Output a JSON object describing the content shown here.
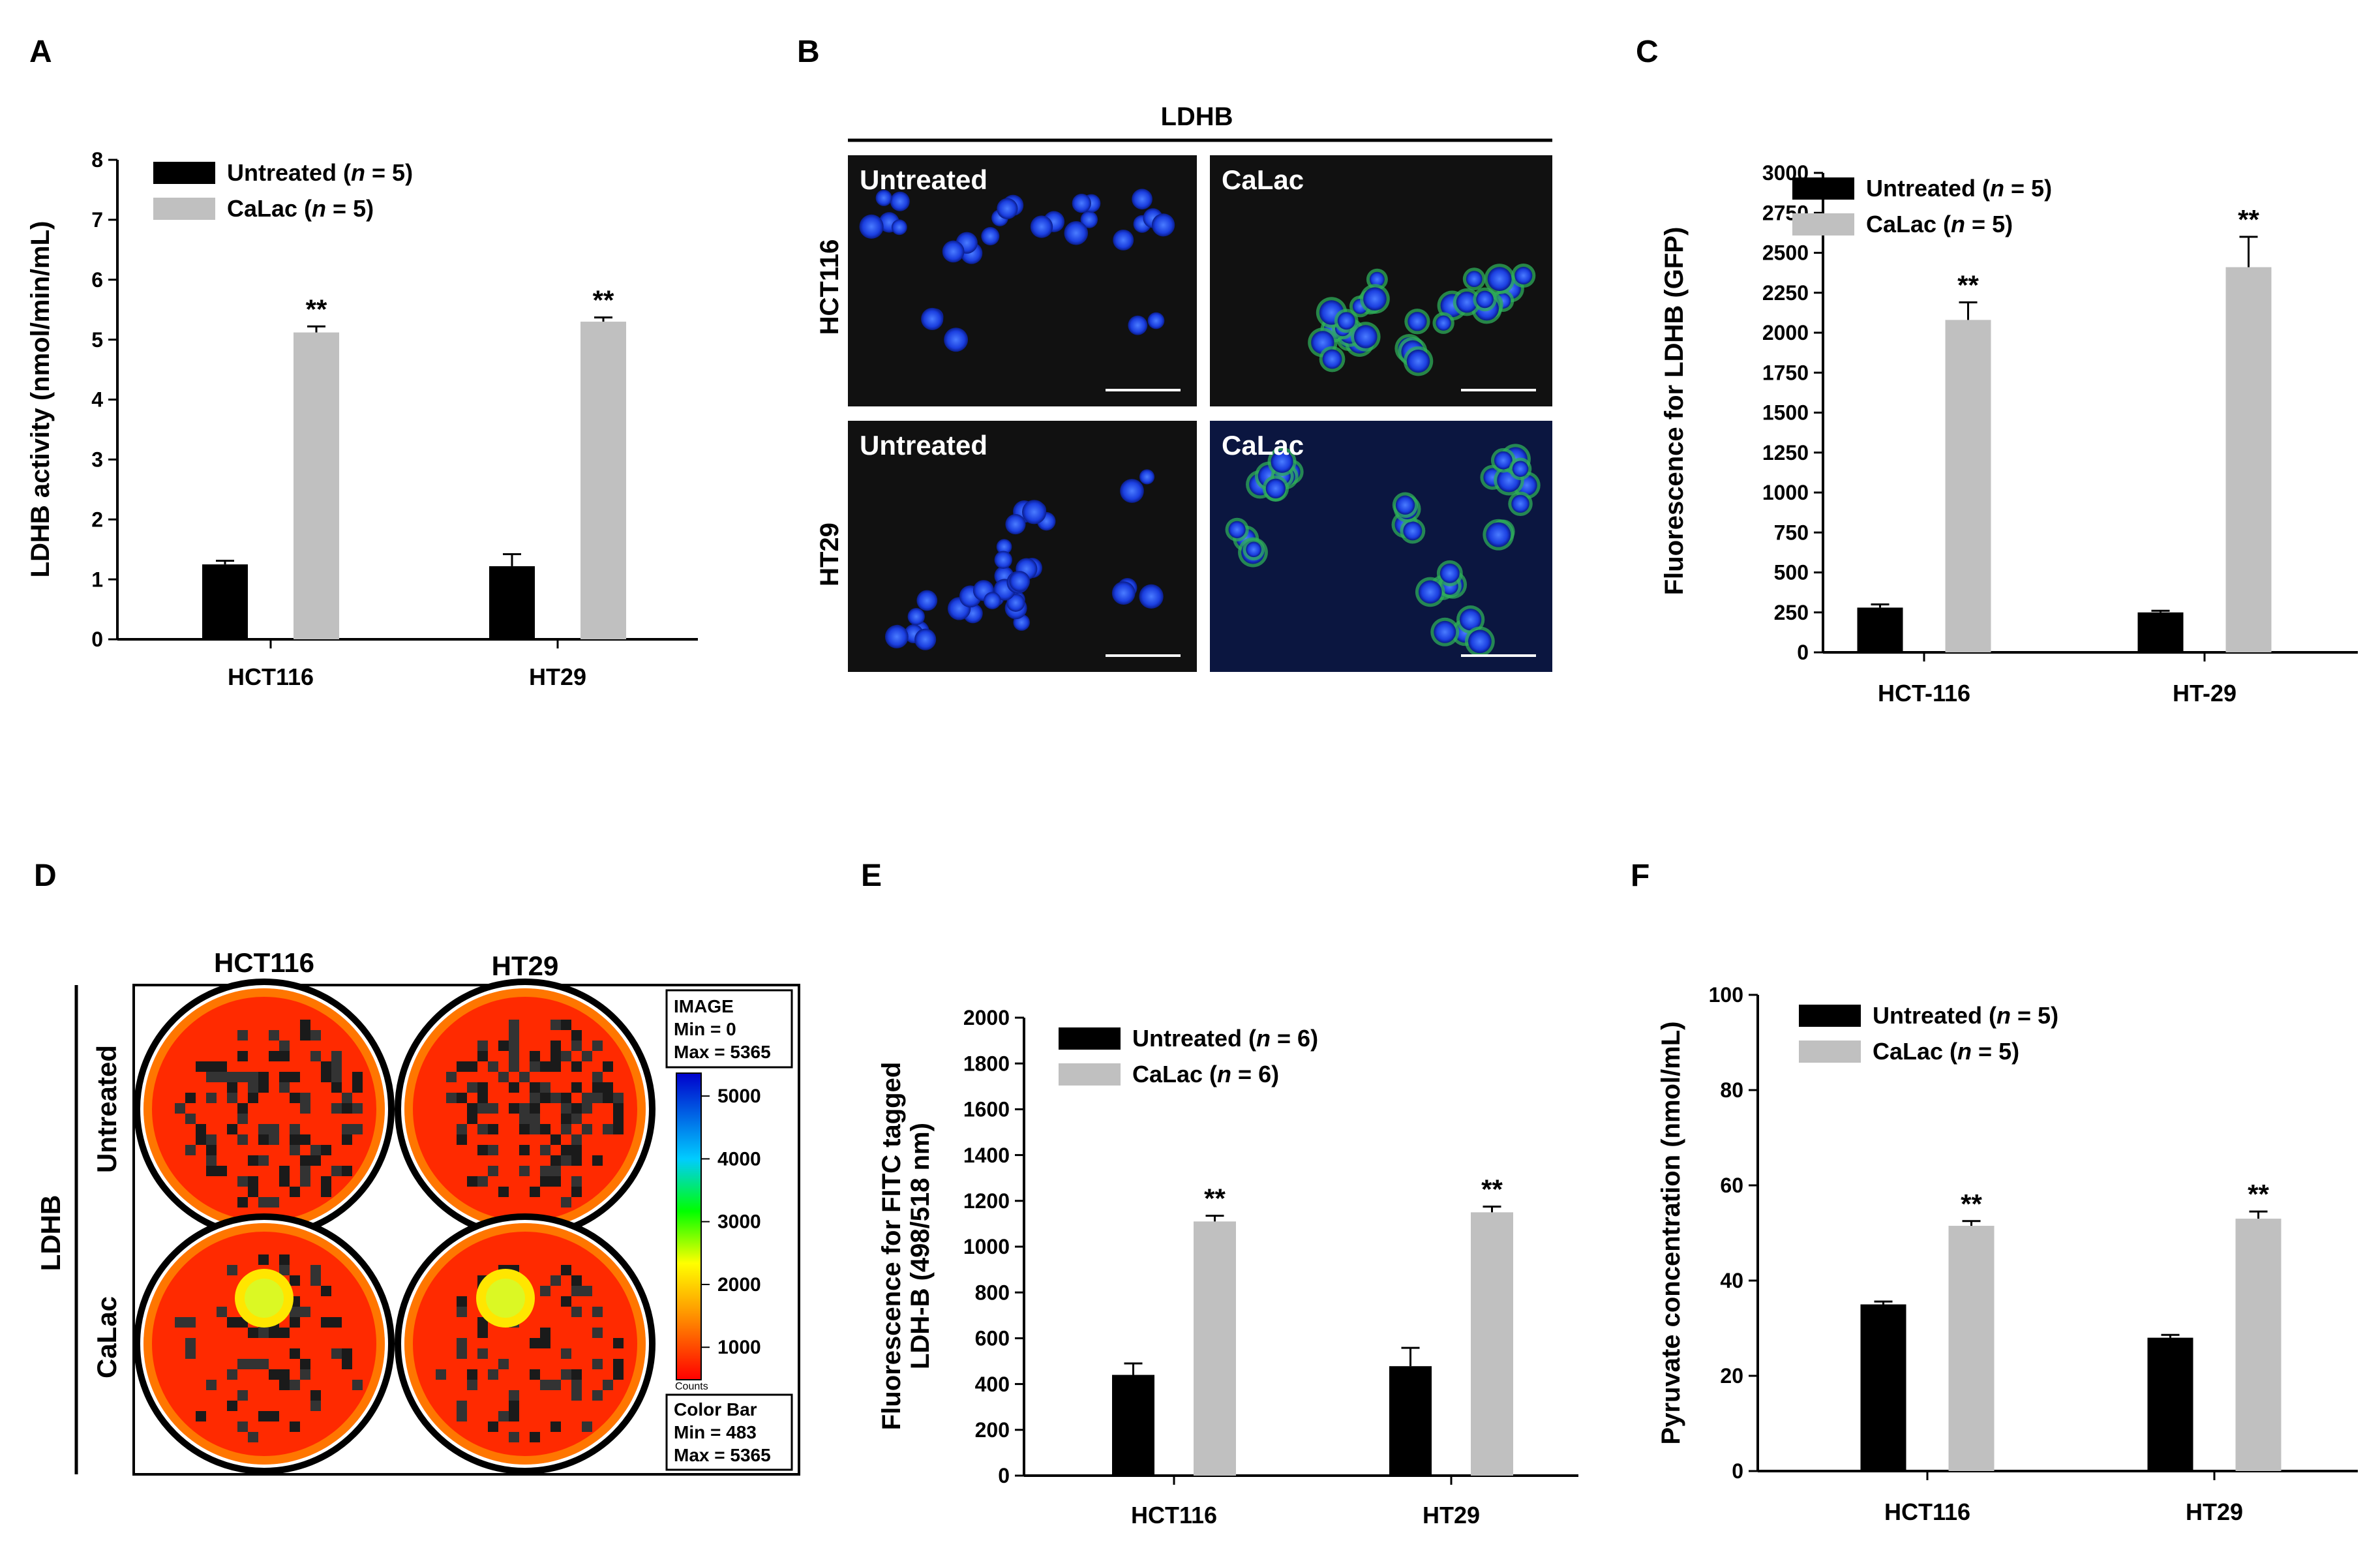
{
  "panels": {
    "A": "A",
    "B": "B",
    "C": "C",
    "D": "D",
    "E": "E",
    "F": "F"
  },
  "chart_data": [
    {
      "panel": "A",
      "type": "bar",
      "categories": [
        "HCT116",
        "HT29"
      ],
      "series": [
        {
          "name": "Untreated (n = 5)",
          "values": [
            1.25,
            1.22
          ],
          "errors": [
            0.06,
            0.2
          ],
          "color": "#000000"
        },
        {
          "name": "CaLac (n = 5)",
          "values": [
            5.12,
            5.3
          ],
          "errors": [
            0.1,
            0.07
          ],
          "color": "#c0c0c0"
        }
      ],
      "significance": [
        "**",
        "**"
      ],
      "ylabel": "LDHB activity (nmol/min/mL)",
      "ylim": [
        0,
        8
      ],
      "yticks": [
        0,
        1,
        2,
        3,
        4,
        5,
        6,
        7,
        8
      ],
      "grid": false,
      "legend": "top-left"
    },
    {
      "panel": "C",
      "type": "bar",
      "categories": [
        "HCT-116",
        "HT-29"
      ],
      "series": [
        {
          "name": "Untreated (n = 5)",
          "values": [
            280,
            250
          ],
          "errors": [
            20,
            10
          ],
          "color": "#000000"
        },
        {
          "name": "CaLac (n = 5)",
          "values": [
            2080,
            2410
          ],
          "errors": [
            110,
            190
          ],
          "color": "#c0c0c0"
        }
      ],
      "significance": [
        "**",
        "**"
      ],
      "ylabel": "Fluorescence for LDHB (GFP)",
      "ylim": [
        0,
        3000
      ],
      "yticks": [
        0,
        250,
        500,
        750,
        1000,
        1250,
        1500,
        1750,
        2000,
        2250,
        2500,
        2750,
        3000
      ],
      "grid": false,
      "legend": "top-left"
    },
    {
      "panel": "E",
      "type": "bar",
      "categories": [
        "HCT116",
        "HT29"
      ],
      "series": [
        {
          "name": "Untreated (n = 6)",
          "values": [
            440,
            478
          ],
          "errors": [
            50,
            80
          ],
          "color": "#000000"
        },
        {
          "name": "CaLac (n = 6)",
          "values": [
            1110,
            1150
          ],
          "errors": [
            25,
            25
          ],
          "color": "#c0c0c0"
        }
      ],
      "significance": [
        "**",
        "**"
      ],
      "ylabel_lines": [
        "Fluorescence for FITC tagged",
        "LDH-B (498/518 nm)"
      ],
      "ylim": [
        0,
        2000
      ],
      "yticks": [
        0,
        200,
        400,
        600,
        800,
        1000,
        1200,
        1400,
        1600,
        1800,
        2000
      ],
      "grid": false,
      "legend": "top-left"
    },
    {
      "panel": "F",
      "type": "bar",
      "categories": [
        "HCT116",
        "HT29"
      ],
      "series": [
        {
          "name": "Untreated (n = 5)",
          "values": [
            35,
            28
          ],
          "errors": [
            0.6,
            0.6
          ],
          "color": "#000000"
        },
        {
          "name": "CaLac (n = 5)",
          "values": [
            51.5,
            53
          ],
          "errors": [
            1,
            1.5
          ],
          "color": "#c0c0c0"
        }
      ],
      "significance": [
        "**",
        "**"
      ],
      "ylabel": "Pyruvate concentration (nmol/mL)",
      "ylim": [
        0,
        100
      ],
      "yticks": [
        0,
        20,
        40,
        60,
        80,
        100
      ],
      "grid": false,
      "legend": "top-left"
    }
  ],
  "panel_b": {
    "header": "LDHB",
    "rows": [
      "HCT116",
      "HT29"
    ],
    "cells": [
      "Untreated",
      "CaLac",
      "Untreated",
      "CaLac"
    ]
  },
  "panel_d": {
    "columns": [
      "HCT116",
      "HT29"
    ],
    "rows": [
      "Untreated",
      "CaLac"
    ],
    "side_label": "LDHB",
    "image_box": [
      "IMAGE",
      "Min = 0",
      "Max = 5365"
    ],
    "colorbar_box": [
      "Color Bar",
      "Min = 483",
      "Max = 5365"
    ],
    "colorbar_ticks": [
      5000,
      4000,
      3000,
      2000,
      1000
    ],
    "colorbar_unit": "Counts"
  }
}
